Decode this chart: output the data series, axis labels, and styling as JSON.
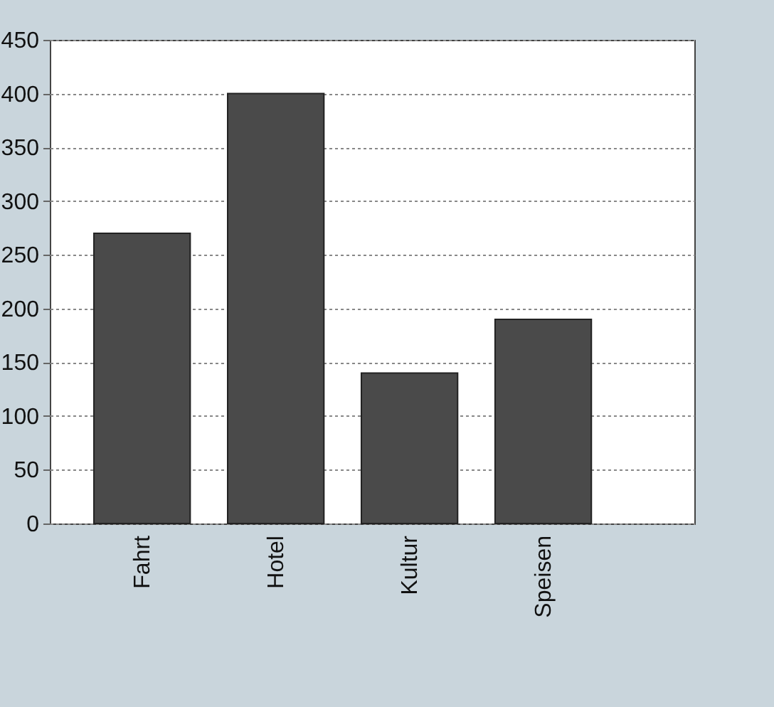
{
  "chart_data": {
    "type": "bar",
    "categories": [
      "Fahrt",
      "Hotel",
      "Kultur",
      "Speisen"
    ],
    "values": [
      270,
      400,
      140,
      190
    ],
    "color": "#4a4a4a",
    "ylim": [
      0,
      450
    ],
    "yticks": [
      0,
      50,
      100,
      150,
      200,
      250,
      300,
      350,
      400,
      450
    ],
    "grid": "y"
  }
}
